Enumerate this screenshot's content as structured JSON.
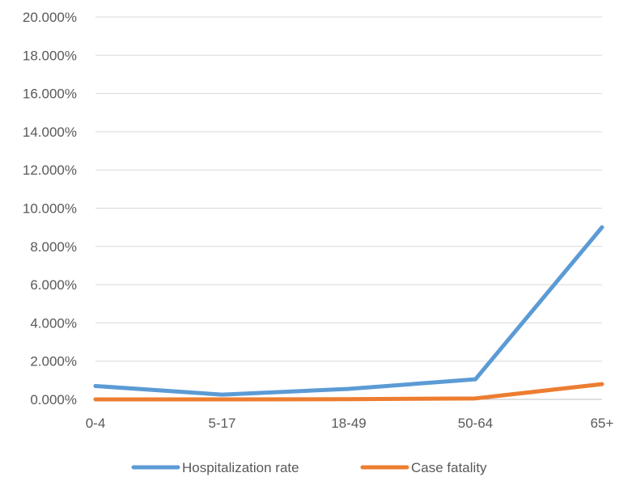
{
  "chart_data": {
    "type": "line",
    "categories": [
      "0-4",
      "5-17",
      "18-49",
      "50-64",
      "65+"
    ],
    "series": [
      {
        "name": "Hospitalization rate",
        "color": "#5B9BD5",
        "values": [
          0.7,
          0.25,
          0.55,
          1.05,
          9.0
        ]
      },
      {
        "name": "Case fatality",
        "color": "#ED7D31",
        "values": [
          0.0,
          0.0,
          0.01,
          0.05,
          0.8
        ]
      }
    ],
    "ylim": [
      0,
      20
    ],
    "yticks": [
      0,
      2,
      4,
      6,
      8,
      10,
      12,
      14,
      16,
      18,
      20
    ],
    "ytick_labels": [
      "0.000%",
      "2.000%",
      "4.000%",
      "6.000%",
      "8.000%",
      "10.000%",
      "12.000%",
      "14.000%",
      "16.000%",
      "18.000%",
      "20.000%"
    ],
    "grid": "horizontal",
    "legend_position": "bottom"
  }
}
